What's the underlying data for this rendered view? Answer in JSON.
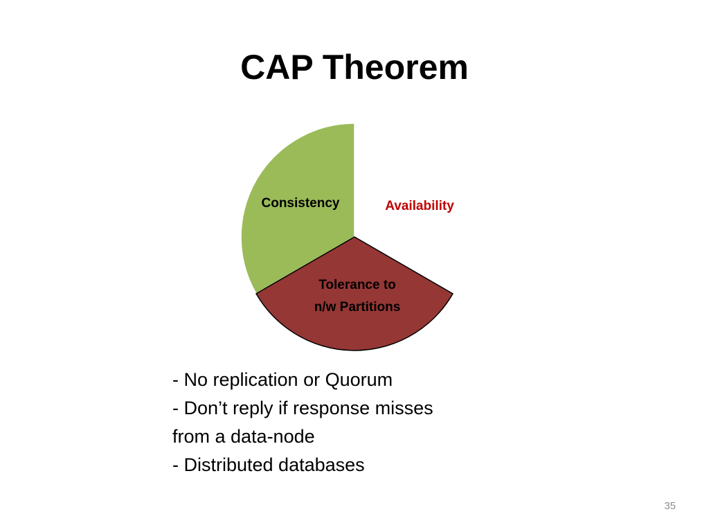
{
  "slide": {
    "title": "CAP Theorem",
    "page_number": "35"
  },
  "diagram": {
    "slices": [
      {
        "id": "consistency",
        "label": "Consistency",
        "color": "#9bbb59",
        "label_color": "#000000",
        "filled": true
      },
      {
        "id": "availability",
        "label": "Availability",
        "color": "#c00000",
        "label_color": "#c00000",
        "filled": false
      },
      {
        "id": "partition",
        "label_lines": [
          "Tolerance to",
          "n/w Partitions"
        ],
        "color": "#953735",
        "label_color": "#000000",
        "filled": true
      }
    ]
  },
  "notes": {
    "lines": [
      "- No replication or Quorum",
      "- Don’t reply if response misses",
      "from a data-node",
      "- Distributed databases"
    ]
  }
}
